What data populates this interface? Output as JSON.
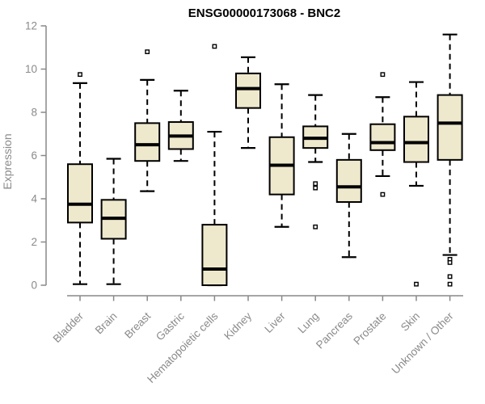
{
  "title": "ENSG00000173068 - BNC2",
  "colors": {
    "background": "#FFFFFF",
    "box_fill": "#EEE8CD",
    "box_border": "#000000",
    "median": "#000000",
    "whisker": "#000000",
    "outlier_fill": "#FFFFFF",
    "outlier_border": "#000000",
    "axis": "#888888",
    "axis_text": "#8A8A8A",
    "title_text": "#000000"
  },
  "chart_data": {
    "type": "boxplot",
    "title": "ENSG00000173068 - BNC2",
    "xlabel": "",
    "ylabel": "Expression",
    "ylim": [
      0,
      12
    ],
    "y_ticks": [
      0,
      2,
      4,
      6,
      8,
      10,
      12
    ],
    "grid": false,
    "legend": "none",
    "x_label_rotation_deg": 45,
    "categories": [
      "Bladder",
      "Brain",
      "Breast",
      "Gastric",
      "Hematopoietic cells",
      "Kidney",
      "Liver",
      "Lung",
      "Pancreas",
      "Prostate",
      "Skin",
      "Unknown / Other"
    ],
    "series": [
      {
        "name": "Bladder",
        "whisker_low": 0.05,
        "q1": 2.9,
        "median": 3.75,
        "q3": 5.6,
        "whisker_high": 9.35,
        "outliers": [
          9.75
        ]
      },
      {
        "name": "Brain",
        "whisker_low": 0.05,
        "q1": 2.15,
        "median": 3.1,
        "q3": 3.95,
        "whisker_high": 5.85,
        "outliers": []
      },
      {
        "name": "Breast",
        "whisker_low": 4.35,
        "q1": 5.75,
        "median": 6.5,
        "q3": 7.5,
        "whisker_high": 9.5,
        "outliers": [
          10.8
        ]
      },
      {
        "name": "Gastric",
        "whisker_low": 5.75,
        "q1": 6.3,
        "median": 6.9,
        "q3": 7.55,
        "whisker_high": 9.0,
        "outliers": []
      },
      {
        "name": "Hematopoietic cells",
        "whisker_low": 0.0,
        "q1": 0.0,
        "median": 0.75,
        "q3": 2.8,
        "whisker_high": 7.1,
        "outliers": [
          11.05
        ]
      },
      {
        "name": "Kidney",
        "whisker_low": 6.35,
        "q1": 8.2,
        "median": 9.1,
        "q3": 9.8,
        "whisker_high": 10.55,
        "outliers": []
      },
      {
        "name": "Liver",
        "whisker_low": 2.7,
        "q1": 4.2,
        "median": 5.55,
        "q3": 6.85,
        "whisker_high": 9.3,
        "outliers": []
      },
      {
        "name": "Lung",
        "whisker_low": 5.7,
        "q1": 6.35,
        "median": 6.8,
        "q3": 7.35,
        "whisker_high": 8.8,
        "outliers": [
          4.7,
          4.5,
          2.7
        ]
      },
      {
        "name": "Pancreas",
        "whisker_low": 1.3,
        "q1": 3.85,
        "median": 4.55,
        "q3": 5.8,
        "whisker_high": 7.0,
        "outliers": []
      },
      {
        "name": "Prostate",
        "whisker_low": 5.05,
        "q1": 6.25,
        "median": 6.6,
        "q3": 7.45,
        "whisker_high": 8.7,
        "outliers": [
          9.75,
          4.2
        ]
      },
      {
        "name": "Skin",
        "whisker_low": 4.6,
        "q1": 5.7,
        "median": 6.6,
        "q3": 7.8,
        "whisker_high": 9.4,
        "outliers": [
          0.05
        ]
      },
      {
        "name": "Unknown / Other",
        "whisker_low": 1.4,
        "q1": 5.8,
        "median": 7.5,
        "q3": 8.8,
        "whisker_high": 11.6,
        "outliers": [
          1.2,
          1.05,
          0.4,
          0.05
        ]
      }
    ]
  }
}
